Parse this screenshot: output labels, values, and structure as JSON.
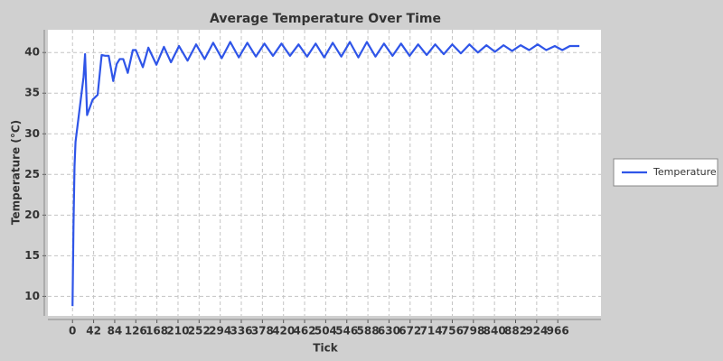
{
  "chart_data": {
    "type": "line",
    "title": "Average Temperature Over Time",
    "x_label": "Tick",
    "y_label": "Temperature (°C)",
    "x": [
      0,
      2,
      4,
      6,
      10,
      14,
      18,
      22,
      25,
      29,
      40,
      50,
      58,
      65,
      72,
      81,
      88,
      94,
      101,
      110,
      120,
      126,
      140,
      151,
      167,
      182,
      196,
      212,
      229,
      246,
      263,
      280,
      297,
      314,
      331,
      348,
      365,
      382,
      399,
      416,
      433,
      450,
      467,
      484,
      501,
      518,
      535,
      552,
      569,
      586,
      603,
      620,
      637,
      654,
      671,
      688,
      705,
      722,
      739,
      756,
      773,
      790,
      807,
      824,
      841,
      858,
      875,
      892,
      909,
      926,
      943,
      960,
      975,
      990,
      1009
    ],
    "series": [
      {
        "name": "Temperature",
        "color": "#2f55e8",
        "values": [
          8.8,
          19,
          26,
          29,
          31,
          33,
          35,
          37,
          39.8,
          32.3,
          34.2,
          34.8,
          39.7,
          39.6,
          39.6,
          36.5,
          38.6,
          39.2,
          39.2,
          37.5,
          40.3,
          40.3,
          38.2,
          40.6,
          38.5,
          40.7,
          38.8,
          40.8,
          39.0,
          41.0,
          39.2,
          41.2,
          39.3,
          41.3,
          39.4,
          41.2,
          39.5,
          41.1,
          39.6,
          41.1,
          39.6,
          41.0,
          39.5,
          41.1,
          39.4,
          41.2,
          39.5,
          41.3,
          39.4,
          41.3,
          39.5,
          41.1,
          39.6,
          41.1,
          39.6,
          41.0,
          39.7,
          41.0,
          39.8,
          41.0,
          39.9,
          41.0,
          40.0,
          40.9,
          40.1,
          40.9,
          40.2,
          40.9,
          40.3,
          41.0,
          40.3,
          40.8,
          40.3,
          40.8,
          40.8
        ]
      }
    ],
    "xlim": [
      -49,
      1052
    ],
    "ylim": [
      7.6,
      42.8
    ],
    "xticks": [
      0,
      42,
      84,
      126,
      168,
      210,
      252,
      294,
      336,
      378,
      420,
      462,
      504,
      546,
      588,
      630,
      672,
      714,
      756,
      798,
      840,
      882,
      924,
      966
    ],
    "yticks": [
      10,
      15,
      20,
      25,
      30,
      35,
      40
    ],
    "grid": true,
    "legend": "right"
  }
}
